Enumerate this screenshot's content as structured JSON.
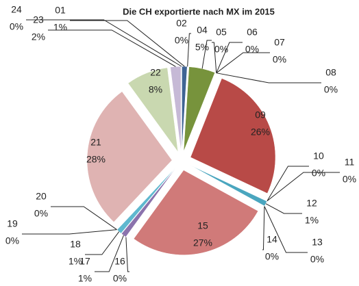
{
  "chart_data": {
    "type": "pie",
    "title": "Die CH exportierte  nach MX im 2015",
    "categories": [
      "01",
      "02",
      "04",
      "05",
      "06",
      "07",
      "08",
      "09",
      "10",
      "11",
      "12",
      "13",
      "14",
      "15",
      "16",
      "17",
      "18",
      "19",
      "20",
      "21",
      "22",
      "23",
      "24"
    ],
    "values": [
      1,
      0,
      5,
      0,
      0,
      0,
      0,
      26,
      0,
      0,
      1,
      0,
      0,
      27,
      0,
      1,
      1,
      0,
      0,
      28,
      8,
      2,
      0
    ],
    "value_labels": [
      "1%",
      "0%",
      "5%",
      "0%",
      "0%",
      "0%",
      "0%",
      "26%",
      "0%",
      "0%",
      "1%",
      "0%",
      "0%",
      "27%",
      "0%",
      "1%",
      "1%",
      "0%",
      "0%",
      "28%",
      "8%",
      "2%",
      "0%"
    ],
    "colors": [
      "#3f6494",
      "#c0504d",
      "#77933c",
      "#8064a2",
      "#4bacc6",
      "#f79646",
      "#2c4d75",
      "#b84a47",
      "#4bacc6",
      "#4bacc6",
      "#4aa6bf",
      "#9bbb59",
      "#f0893a",
      "#d07a79",
      "#a99bbd",
      "#8b73ad",
      "#5fb8cf",
      "#b3dbe6",
      "#f9b98a",
      "#dfb3b2",
      "#c9d8b0",
      "#c6b9d6",
      "#9aa9c6"
    ]
  }
}
